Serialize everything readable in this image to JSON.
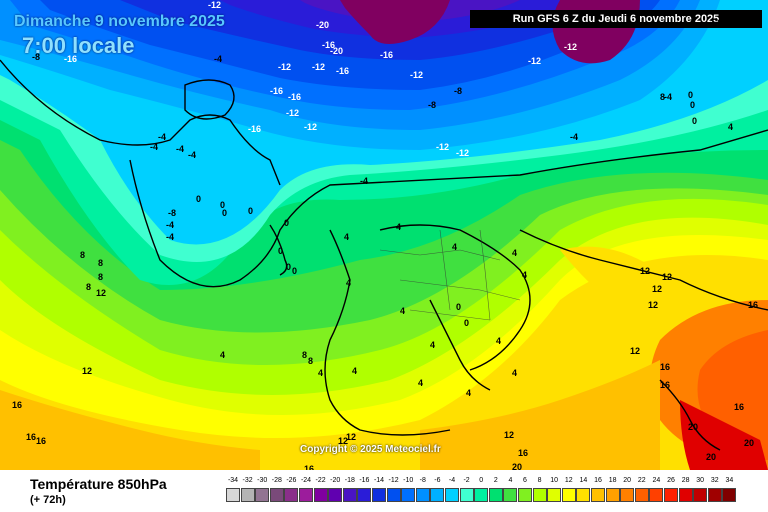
{
  "header": {
    "date": "Dimanche 9 novembre 2025",
    "time": "7:00 locale",
    "run": "Run GFS 6 Z du Jeudi 6 novembre 2025"
  },
  "footer": {
    "title": "Température 850hPa",
    "lead_time": "(+ 72h)",
    "copyright": "Copyright © 2025 Meteociel.fr"
  },
  "legend": {
    "ticks": [
      "-34",
      "-32",
      "-30",
      "-28",
      "-26",
      "-24",
      "-22",
      "-20",
      "-18",
      "-16",
      "-14",
      "-12",
      "-10",
      "-8",
      "-6",
      "-4",
      "-2",
      "0",
      "2",
      "4",
      "6",
      "8",
      "10",
      "12",
      "14",
      "16",
      "18",
      "20",
      "22",
      "24",
      "26",
      "28",
      "30",
      "32",
      "34"
    ],
    "colors": [
      "#d7d7d7",
      "#b4b4b4",
      "#927492",
      "#7a4a7a",
      "#8a2f8a",
      "#9c1c9c",
      "#8000a0",
      "#6000b0",
      "#4a14c4",
      "#2a1cd8",
      "#1030e0",
      "#0050f0",
      "#0070ff",
      "#0090ff",
      "#00b0ff",
      "#00d0ff",
      "#40ffd0",
      "#00f0a0",
      "#00e070",
      "#40e040",
      "#80f020",
      "#b0ff00",
      "#e0ff00",
      "#ffff00",
      "#ffe000",
      "#ffc000",
      "#ffa000",
      "#ff8000",
      "#ff6000",
      "#ff4000",
      "#ff2000",
      "#e00000",
      "#c00000",
      "#a00000",
      "#800000"
    ]
  },
  "map": {
    "values": [
      "-12",
      "-8",
      "-16",
      "-20",
      "-16",
      "-20",
      "-16",
      "-4",
      "-12",
      "-12",
      "-12",
      "-12",
      "-16",
      "-16",
      "-12",
      "-12",
      "-8",
      "-8",
      "-16",
      "-12",
      "-12",
      "-12",
      "-16",
      "-4",
      "-4",
      "-4",
      "-4",
      "-4",
      "-8",
      "-4",
      "-4",
      "-4",
      "-4",
      "0",
      "0",
      "0",
      "0",
      "0",
      "0",
      "0",
      "0",
      "0",
      "0",
      "0",
      "0",
      "0",
      "4",
      "4",
      "4",
      "4",
      "4",
      "4",
      "4",
      "4",
      "4",
      "4",
      "4",
      "4",
      "4",
      "4",
      "4",
      "4",
      "8",
      "8",
      "8",
      "8",
      "8",
      "8",
      "8",
      "12",
      "12",
      "12",
      "12",
      "12",
      "12",
      "12",
      "12",
      "12",
      "12",
      "12",
      "16",
      "16",
      "16",
      "16",
      "16",
      "16",
      "16",
      "16",
      "16",
      "20",
      "20",
      "20",
      "20"
    ]
  }
}
